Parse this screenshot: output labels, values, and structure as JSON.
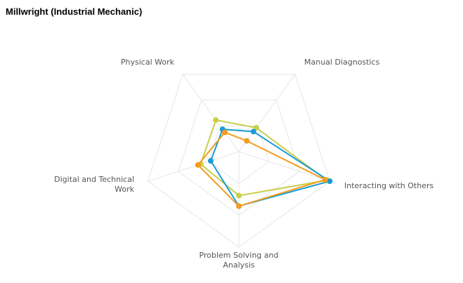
{
  "title": "Millwright (Industrial Mechanic)",
  "chart_data": {
    "type": "radar",
    "title": "Millwright (Industrial Mechanic)",
    "categories": [
      [
        "Manual Diagnostics"
      ],
      [
        "Interacting with Others"
      ],
      [
        "Problem Solving and",
        "Analysis"
      ],
      [
        "Digital and Technical",
        "Work"
      ],
      [
        "Physical Work"
      ]
    ],
    "range": [
      0,
      1
    ],
    "grid_levels": 3,
    "series": [
      {
        "color": "#c8cf4a",
        "values": [
          0.31,
          0.97,
          0.46,
          0.42,
          0.41
        ]
      },
      {
        "color": "#1a9bd7",
        "values": [
          0.26,
          1.0,
          0.57,
          0.31,
          0.29
        ]
      },
      {
        "color": "#f39c1e",
        "values": [
          0.14,
          0.95,
          0.57,
          0.45,
          0.25
        ]
      }
    ]
  }
}
